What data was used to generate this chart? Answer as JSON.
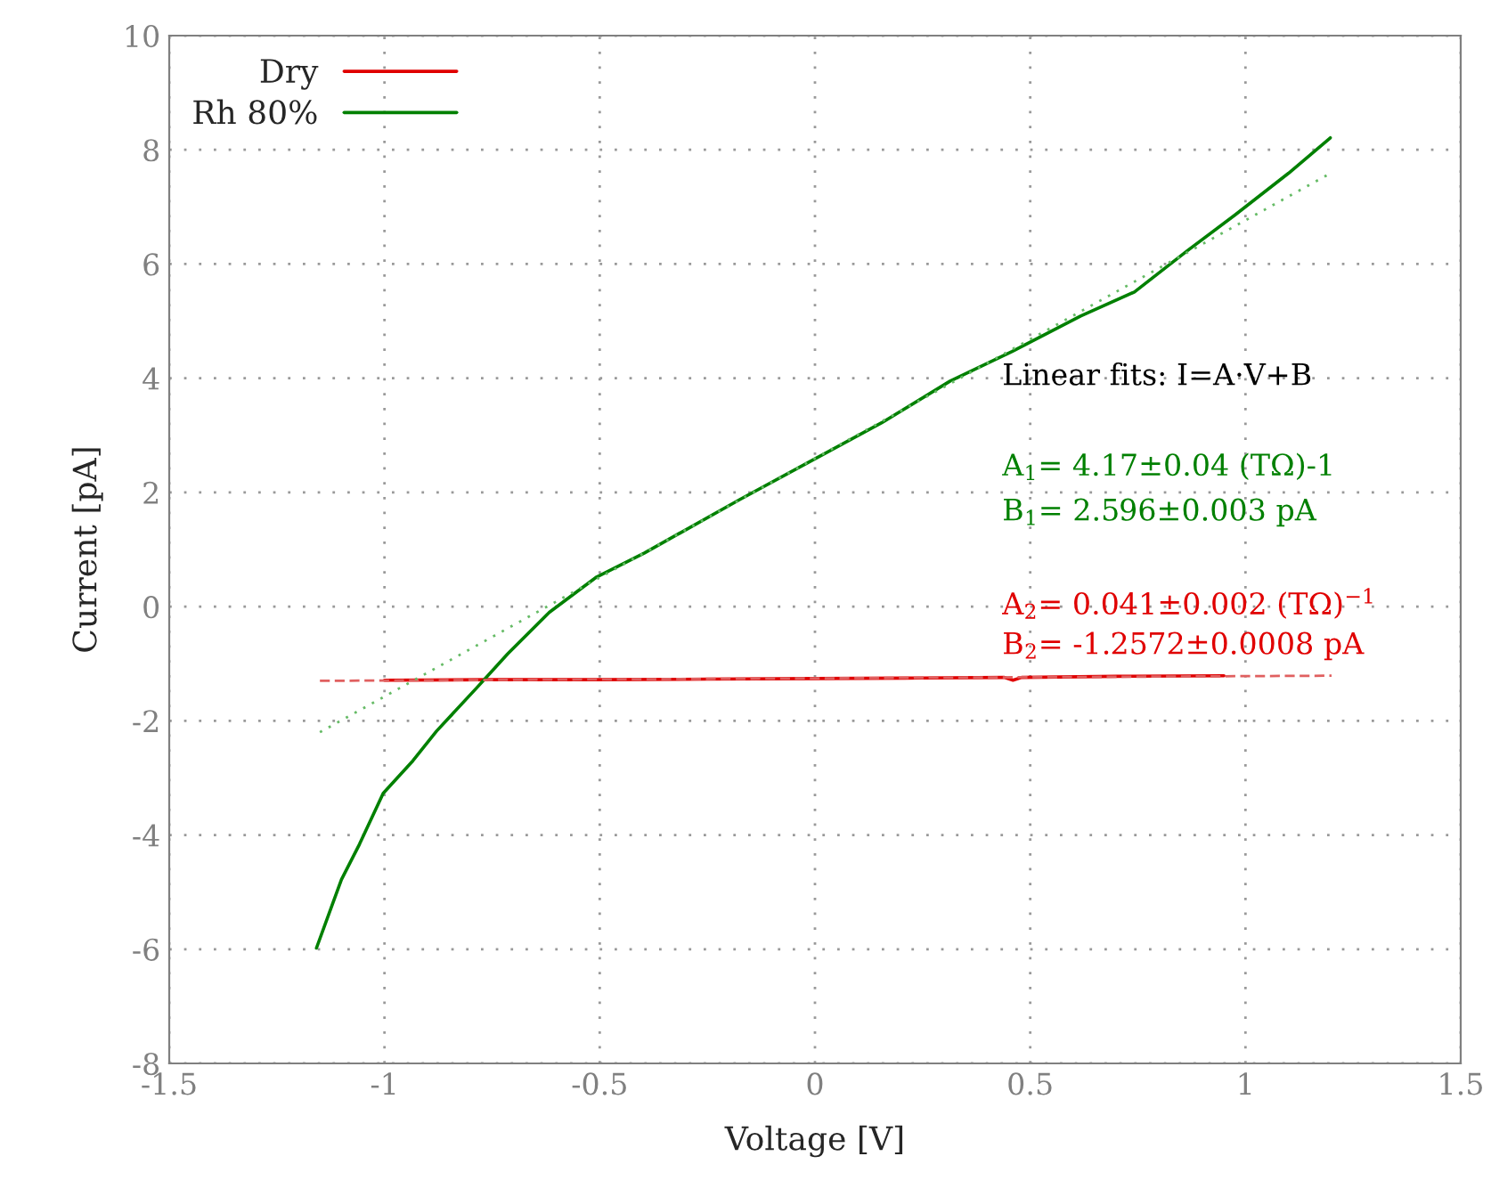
{
  "chart_data": {
    "type": "line",
    "xlabel": "Voltage [V]",
    "ylabel": "Current [pA]",
    "xlim": [
      -1.5,
      1.5
    ],
    "xticks": [
      -1.5,
      -1,
      -0.5,
      0,
      0.5,
      1,
      1.5
    ],
    "ylim": [
      -8,
      10
    ],
    "yticks": [
      -8,
      -6,
      -4,
      -2,
      0,
      2,
      4,
      6,
      8,
      10
    ],
    "grid": true,
    "legend": "top left",
    "line_style": "solid",
    "marker": "none",
    "series": [
      {
        "name": "Dry",
        "color": "#e00000",
        "x": [
          -1.0,
          -0.75,
          -0.5,
          -0.25,
          0.0,
          0.25,
          0.44,
          0.46,
          0.48,
          0.7,
          0.95
        ],
        "values": [
          -1.29,
          -1.28,
          -1.28,
          -1.27,
          -1.26,
          -1.25,
          -1.24,
          -1.29,
          -1.24,
          -1.22,
          -1.21
        ]
      },
      {
        "name": "Rh 80%",
        "color": "#008000",
        "x": [
          -1.158,
          -1.1,
          -1.058,
          -1.003,
          -0.934,
          -0.879,
          -0.783,
          -0.714,
          -0.617,
          -0.507,
          -0.396,
          -0.176,
          0.003,
          0.155,
          0.314,
          0.458,
          0.617,
          0.742,
          0.866,
          0.976,
          1.1,
          1.197
        ],
        "values": [
          -5.98,
          -4.78,
          -4.16,
          -3.27,
          -2.7,
          -2.18,
          -1.4,
          -0.83,
          -0.1,
          0.52,
          0.94,
          1.87,
          2.6,
          3.22,
          3.95,
          4.47,
          5.09,
          5.51,
          6.24,
          6.86,
          7.59,
          8.21
        ]
      },
      {
        "type": "line",
        "color": "#e06060",
        "line_style": "dashed",
        "x": [
          -1.15,
          1.2
        ],
        "values": [
          -1.3,
          -1.21
        ]
      },
      {
        "type": "line",
        "color": "#66bb66",
        "line_style": "dotted",
        "x": [
          -1.15,
          1.2
        ],
        "values": [
          -2.2,
          7.6
        ]
      }
    ],
    "annotations": [
      "Linear fits: I=A·V+B",
      "A$_{1}$= 4.17±0.04 (TΩ)-1",
      "B$_{1}$= 2.596±0.003 pA",
      "A$_{2}$= 0.041±0.002 (TΩ)$^{−1}$",
      "B$_{2}$= -1.2572±0.0008 pA"
    ]
  }
}
